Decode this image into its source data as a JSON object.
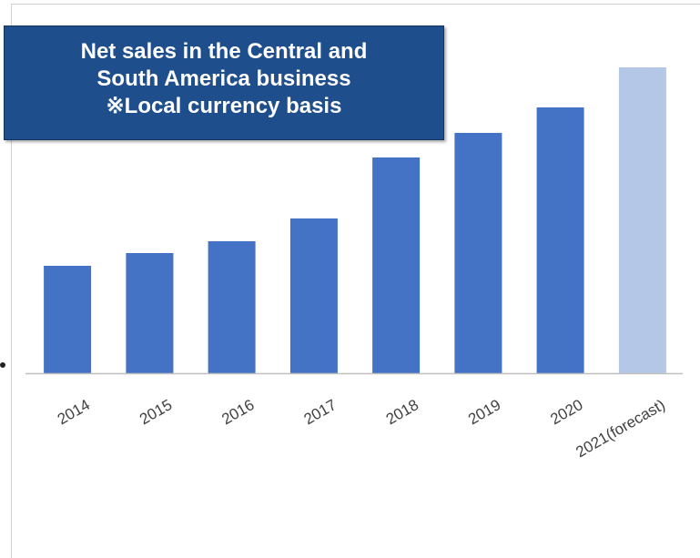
{
  "chart_data": {
    "type": "bar",
    "title_lines": [
      "Net sales in the Central and",
      "South America business",
      "※Local currency basis"
    ],
    "categories": [
      "2014",
      "2015",
      "2016",
      "2017",
      "2018",
      "2019",
      "2020",
      "2021(forecast)"
    ],
    "values": [
      118,
      132,
      145,
      170,
      237,
      264,
      292,
      336
    ],
    "forecast_flags": [
      false,
      false,
      false,
      false,
      false,
      false,
      false,
      true
    ],
    "ylim": [
      0,
      360
    ],
    "grid": false,
    "legend": "none",
    "colors": {
      "actual": "#4472c4",
      "forecast": "#b4c7e7",
      "axis": "#bfbfbf",
      "title_bg": "#1f4e8c"
    }
  }
}
